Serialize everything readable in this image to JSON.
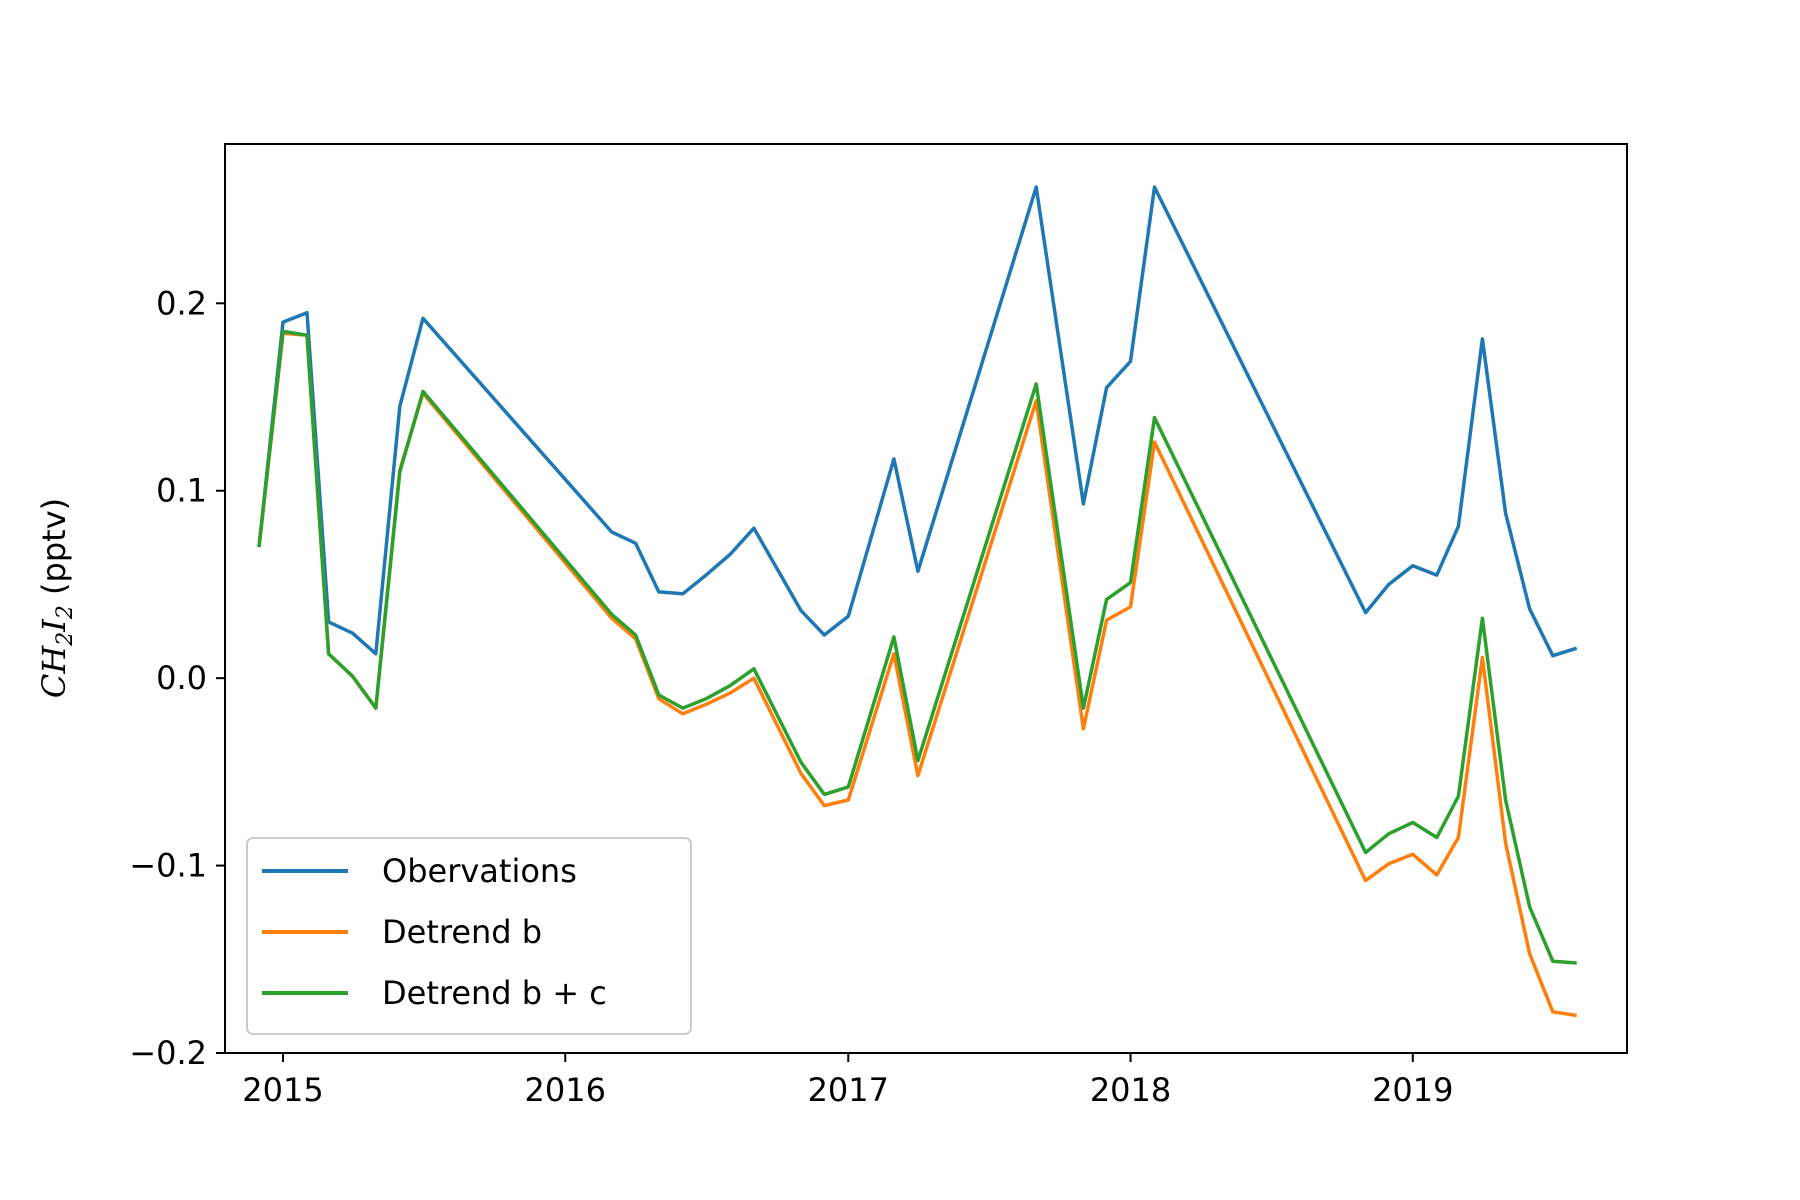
{
  "chart_data": {
    "type": "line",
    "ylabel": "CH2I2 (pptv)",
    "ylabel_parts": {
      "main1": "CH",
      "sub1": "2",
      "main2": "I",
      "sub2": "2",
      "unit": " (pptv)"
    },
    "x_ticks": [
      "2015",
      "2016",
      "2017",
      "2018",
      "2019"
    ],
    "y_ticks": [
      "0.2",
      "0.1",
      "0.0",
      "−0.1",
      "−0.2"
    ],
    "xlim": [
      "2014-10-18",
      "2019-10-05"
    ],
    "ylim": [
      -0.2,
      0.285
    ],
    "grid": false,
    "legend_position": "lower-left",
    "x": [
      "2014-12-01",
      "2015-01-01",
      "2015-02-01",
      "2015-03-01",
      "2015-04-01",
      "2015-05-01",
      "2015-06-01",
      "2015-07-01",
      "2016-03-01",
      "2016-04-01",
      "2016-05-01",
      "2016-06-01",
      "2016-07-01",
      "2016-08-01",
      "2016-09-01",
      "2016-11-01",
      "2016-12-01",
      "2017-01-01",
      "2017-03-01",
      "2017-04-01",
      "2017-09-01",
      "2017-11-01",
      "2017-12-01",
      "2018-01-01",
      "2018-02-01",
      "2018-11-01",
      "2018-12-01",
      "2019-01-01",
      "2019-02-01",
      "2019-03-01",
      "2019-04-01",
      "2019-05-01",
      "2019-06-01",
      "2019-07-01",
      "2019-08-01"
    ],
    "series": [
      {
        "name": "Obervations",
        "color": "#1f77b4",
        "values": [
          0.07,
          0.19,
          0.195,
          0.03,
          0.024,
          0.013,
          0.145,
          0.192,
          0.078,
          0.072,
          0.046,
          0.045,
          0.055,
          0.066,
          0.08,
          0.036,
          0.023,
          0.033,
          0.117,
          0.057,
          0.262,
          0.093,
          0.155,
          0.169,
          0.262,
          0.035,
          0.05,
          0.06,
          0.055,
          0.081,
          0.181,
          0.088,
          0.037,
          0.012,
          0.016
        ]
      },
      {
        "name": "Detrend b",
        "color": "#ff7f0e",
        "values": [
          0.07,
          0.184,
          0.183,
          0.013,
          0.001,
          -0.016,
          0.111,
          0.152,
          0.032,
          0.021,
          -0.011,
          -0.019,
          -0.014,
          -0.008,
          0.0,
          -0.051,
          -0.068,
          -0.065,
          0.013,
          -0.052,
          0.148,
          -0.027,
          0.031,
          0.038,
          0.126,
          -0.108,
          -0.099,
          -0.094,
          -0.105,
          -0.085,
          0.011,
          -0.088,
          -0.147,
          -0.178,
          -0.18
        ]
      },
      {
        "name": "Detrend b + c",
        "color": "#2ca02c",
        "values": [
          0.07,
          0.185,
          0.183,
          0.013,
          0.001,
          -0.016,
          0.11,
          0.153,
          0.034,
          0.023,
          -0.009,
          -0.016,
          -0.011,
          -0.004,
          0.005,
          -0.045,
          -0.062,
          -0.058,
          0.022,
          -0.044,
          0.157,
          -0.016,
          0.042,
          0.051,
          0.139,
          -0.093,
          -0.083,
          -0.077,
          -0.085,
          -0.063,
          0.032,
          -0.065,
          -0.122,
          -0.151,
          -0.152
        ]
      }
    ]
  }
}
